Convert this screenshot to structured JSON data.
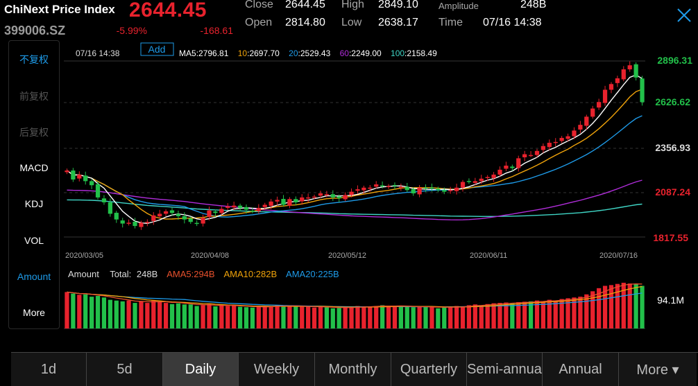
{
  "header": {
    "title": "ChiNext Price Index",
    "price": "2644.45",
    "code": "399006.SZ",
    "change_pct": "-5.99%",
    "change": "-168.61",
    "close_label": "Close",
    "close_value": "2644.45",
    "high_label": "High",
    "high_value": "2849.10",
    "amplitude_label": "Amplitude",
    "amplitude_value": "248B",
    "open_label": "Open",
    "open_value": "2814.80",
    "low_label": "Low",
    "low_value": "2638.17",
    "time_label": "Time",
    "time_value": "07/16 14:38"
  },
  "left_panel": {
    "items": [
      {
        "label": "不复权",
        "active": true
      },
      {
        "label": "前复权",
        "active": false
      },
      {
        "label": "后复权",
        "active": false
      },
      {
        "label": "MACD",
        "active": false
      },
      {
        "label": "KDJ",
        "active": false
      },
      {
        "label": "VOL",
        "active": false
      },
      {
        "label": "Amount",
        "active": true
      },
      {
        "label": "More",
        "active": false
      }
    ]
  },
  "legend": {
    "date": "07/16 14:38",
    "add_label": "Add",
    "ma5_label": "MA5",
    "ma5_value": ":2796.81",
    "ma10_label": "10",
    "ma10_value": ":2697.70",
    "ma20_label": "20",
    "ma20_value": ":2529.43",
    "ma60_label": "60",
    "ma60_value": ":2249.00",
    "ma100_label": "100",
    "ma100_value": ":2158.49"
  },
  "amount_legend": {
    "title": "Amount",
    "total_label": "Total",
    "total_value": "248B",
    "ama5_label": "AMA5",
    "ama5_value": ":294B",
    "ama10_label": "AMA10",
    "ama10_value": ":282B",
    "ama20_label": "AMA20",
    "ama20_value": ":225B",
    "axis_label": "94.1M"
  },
  "axis": {
    "y_labels": [
      "2896.31",
      "2626.62",
      "2356.93",
      "2087.24",
      "1817.55"
    ],
    "x_labels": [
      "2020/03/05",
      "2020/04/08",
      "2020/05/12",
      "2020/06/11",
      "2020/07/16"
    ]
  },
  "colors": {
    "up": "#e8222d",
    "down": "#22c04a",
    "ma5": "#ffffff",
    "ma10": "#f0a30a",
    "ma20": "#1e9be9",
    "ma60": "#b12ddb",
    "ma100": "#3fd6c6",
    "accent": "#1e9be9"
  },
  "tabs": [
    {
      "label": "1d",
      "active": false
    },
    {
      "label": "5d",
      "active": false
    },
    {
      "label": "Daily",
      "active": true
    },
    {
      "label": "Weekly",
      "active": false
    },
    {
      "label": "Monthly",
      "active": false
    },
    {
      "label": "Quarterly",
      "active": false
    },
    {
      "label": "Semi-annua",
      "active": false
    },
    {
      "label": "Annual",
      "active": false
    },
    {
      "label": "More ▾",
      "active": false
    }
  ],
  "chart_data": {
    "type": "candlestick",
    "ylim": [
      1817.55,
      2896.31
    ],
    "candle_closes": [
      2225,
      2170,
      2200,
      2160,
      2135,
      2060,
      2030,
      1960,
      1925,
      1900,
      1905,
      1885,
      1905,
      1910,
      1950,
      1960,
      1975,
      1965,
      1945,
      1925,
      1910,
      1900,
      1935,
      1980,
      1965,
      1990,
      2005,
      2010,
      1995,
      1985,
      1975,
      1995,
      2015,
      2035,
      2045,
      2015,
      2050,
      2030,
      2060,
      2060,
      2065,
      2085,
      2080,
      2060,
      2055,
      2075,
      2095,
      2110,
      2120,
      2120,
      2140,
      2130,
      2130,
      2130,
      2125,
      2105,
      2085,
      2120,
      2115,
      2120,
      2105,
      2095,
      2105,
      2120,
      2155,
      2155,
      2160,
      2175,
      2185,
      2200,
      2230,
      2255,
      2240,
      2300,
      2325,
      2320,
      2345,
      2375,
      2395,
      2400,
      2425,
      2435,
      2470,
      2505,
      2555,
      2605,
      2645,
      2720,
      2755,
      2790,
      2845,
      2870,
      2795,
      2644
    ],
    "amount_values": [
      94,
      90,
      87,
      88,
      82,
      84,
      80,
      74,
      72,
      70,
      72,
      66,
      70,
      66,
      72,
      70,
      66,
      63,
      65,
      62,
      62,
      58,
      60,
      63,
      57,
      60,
      58,
      60,
      56,
      55,
      54,
      56,
      58,
      58,
      60,
      57,
      58,
      58,
      56,
      56,
      54,
      57,
      55,
      52,
      53,
      54,
      56,
      58,
      57,
      56,
      58,
      60,
      58,
      57,
      58,
      56,
      55,
      56,
      57,
      55,
      52,
      54,
      56,
      58,
      57,
      60,
      62,
      60,
      63,
      65,
      66,
      67,
      65,
      68,
      69,
      70,
      72,
      70,
      74,
      72,
      76,
      78,
      80,
      82,
      88,
      96,
      104,
      110,
      112,
      115,
      118,
      116,
      114,
      110
    ]
  }
}
